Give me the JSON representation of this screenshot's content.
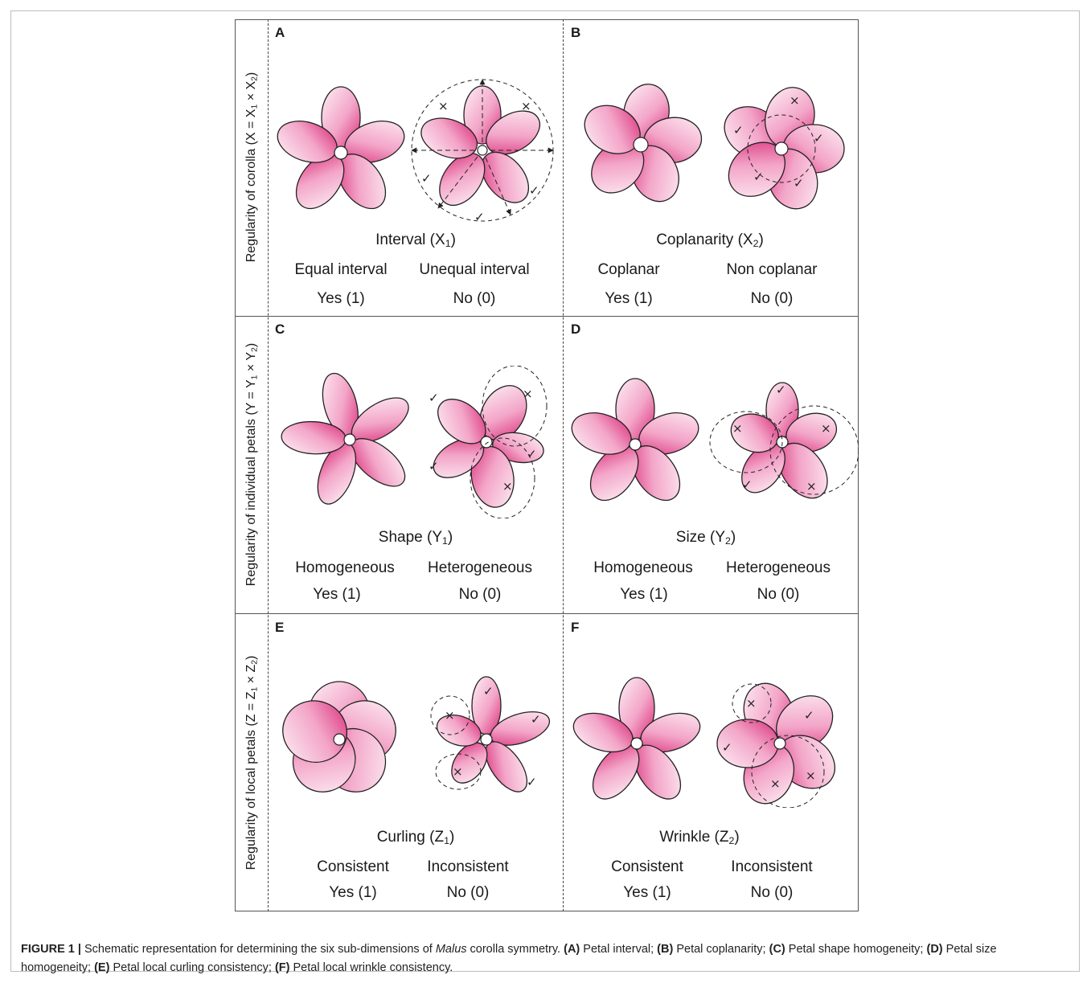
{
  "figure": {
    "row_labels": [
      {
        "text": "Regularity of corolla (X = X",
        "s1": "1",
        "mid": " × X",
        "s2": "2",
        "end": ")"
      },
      {
        "text": "Regularity of individual petals (Y = Y",
        "s1": "1",
        "mid": " × Y",
        "s2": "2",
        "end": ")"
      },
      {
        "text": "Regularity of local petals (Z = Z",
        "s1": "1",
        "mid": " × Z",
        "s2": "2",
        "end": ")"
      }
    ],
    "panels": [
      {
        "letter": "A",
        "dim": "Interval (X",
        "dim_sub": "1",
        "left_label": "Equal interval",
        "right_label": "Unequal interval",
        "left_value": "Yes (1)",
        "right_value": "No (0)"
      },
      {
        "letter": "B",
        "dim": "Coplanarity (X",
        "dim_sub": "2",
        "left_label": "Coplanar",
        "right_label": "Non coplanar",
        "left_value": "Yes (1)",
        "right_value": "No (0)"
      },
      {
        "letter": "C",
        "dim": "Shape (Y",
        "dim_sub": "1",
        "left_label": "Homogeneous",
        "right_label": "Heterogeneous",
        "left_value": "Yes (1)",
        "right_value": "No (0)"
      },
      {
        "letter": "D",
        "dim": "Size (Y",
        "dim_sub": "2",
        "left_label": "Homogeneous",
        "right_label": "Heterogeneous",
        "left_value": "Yes (1)",
        "right_value": "No (0)"
      },
      {
        "letter": "E",
        "dim": "Curling (Z",
        "dim_sub": "1",
        "left_label": "Consistent",
        "right_label": "Inconsistent",
        "left_value": "Yes (1)",
        "right_value": "No (0)"
      },
      {
        "letter": "F",
        "dim": "Wrinkle (Z",
        "dim_sub": "2",
        "left_label": "Consistent",
        "right_label": "Inconsistent",
        "left_value": "Yes (1)",
        "right_value": "No (0)"
      }
    ],
    "marks": {
      "check": "✓",
      "cross": "×"
    },
    "colors": {
      "petal_light": "#fbe3ee",
      "petal_dark": "#e0367f",
      "outline": "#222222"
    }
  },
  "caption": {
    "label": "FIGURE 1 |",
    "text_1": " Schematic representation for determining the six sub-dimensions of ",
    "italic": "Malus",
    "text_2": " corolla symmetry. ",
    "a_tag": "(A)",
    "a_text": " Petal interval; ",
    "b_tag": "(B)",
    "b_text": " Petal coplanarity; ",
    "c_tag": "(C)",
    "c_text": " Petal shape homogeneity; ",
    "d_tag": "(D)",
    "d_text": " Petal size homogeneity; ",
    "e_tag": "(E)",
    "e_text": " Petal local curling consistency; ",
    "f_tag": "(F)",
    "f_text": " Petal local wrinkle consistency."
  }
}
